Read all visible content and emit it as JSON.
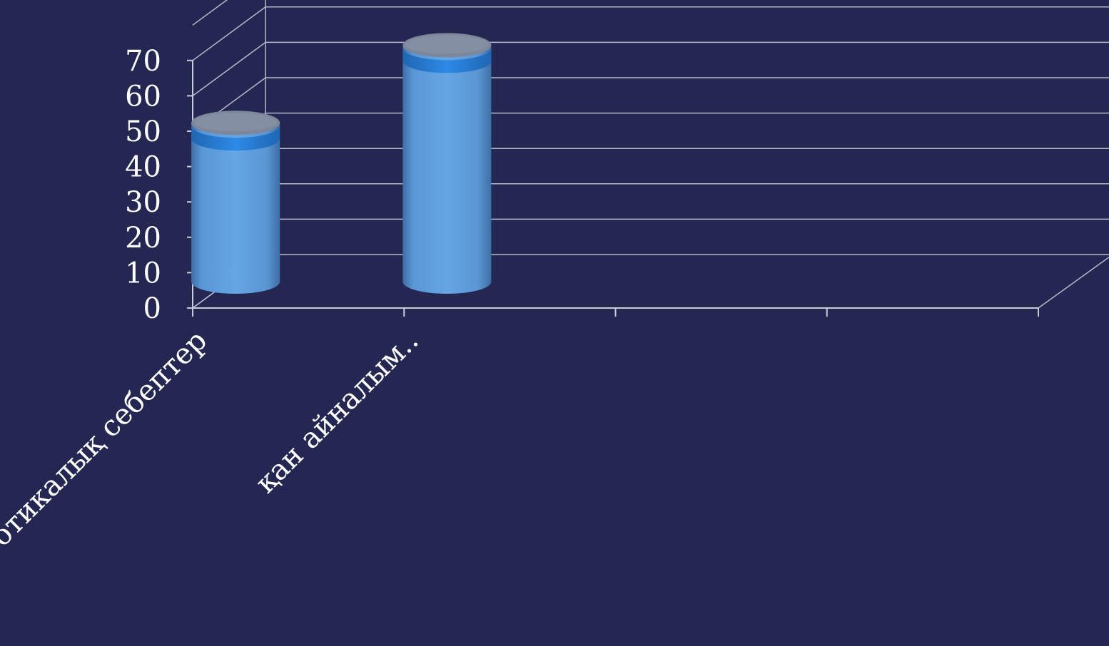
{
  "chart_data": {
    "type": "bar",
    "style": "3d-cylinder",
    "categories": [
      "Нефротикалық себептер",
      "қан айналым.."
    ],
    "series": [
      {
        "values": [
          45,
          67
        ],
        "color": "#5d9ddb"
      }
    ],
    "yticks": [
      "0",
      "10",
      "20",
      "30",
      "40",
      "50",
      "60",
      "70"
    ],
    "ylim": [
      0,
      70
    ],
    "grid": true,
    "legend": "none",
    "colors": {
      "background": "#252753",
      "bar": "#5d9ddb",
      "bar_band": "#2b86e0",
      "bar_top": "#7e8799",
      "grid": "#b8bacb"
    }
  }
}
